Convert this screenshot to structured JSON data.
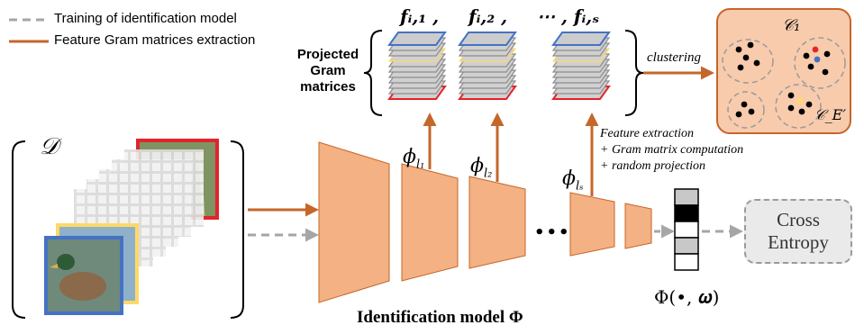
{
  "legend": {
    "dashed_label": "Training of identification model",
    "solid_label": "Feature Gram matrices extraction"
  },
  "dataset_label": "𝒟",
  "projected_label": "Projected\nGram\nmatrices",
  "f_labels": [
    "𝒇ᵢ,₁ ,",
    "𝒇ᵢ,₂ ,",
    "⋯ , 𝒇ᵢ,ₛ"
  ],
  "clustering_label": "clustering",
  "cluster_labels": [
    "𝒞₁",
    "𝒞_E′"
  ],
  "phi_labels": [
    "ϕ",
    "ϕ",
    "ϕ"
  ],
  "phi_subs": [
    "l₁",
    "l₂",
    "lₛ"
  ],
  "feature_text": [
    "Feature extraction",
    "+ Gram matrix computation",
    "+ random projection"
  ],
  "ellipsis": "•••",
  "output_label": "Φ(•, 𝝎)",
  "loss_label": "Cross\nEntropy",
  "model_title": "Identification model Φ",
  "colors": {
    "orange_fill": "#f4b183",
    "arrow_brown": "#c5662a",
    "dash_gray": "#a6a6a6",
    "cluster_bg": "#f8cbad",
    "red": "#e3242b",
    "yellow": "#ffd966",
    "blue": "#4472c4"
  }
}
